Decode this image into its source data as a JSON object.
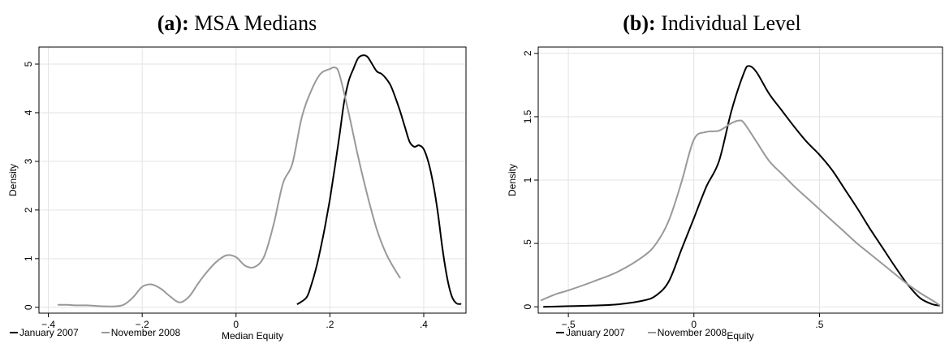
{
  "chart_data": [
    {
      "type": "line",
      "title_bold": "(a):",
      "title_rest": "MSA Medians",
      "xlabel": "Median Equity",
      "ylabel": "Density",
      "xlim": [
        -0.42,
        0.49
      ],
      "ylim": [
        -0.12,
        5.35
      ],
      "xticks": [
        -0.4,
        -0.2,
        0,
        0.2,
        0.4
      ],
      "xtick_labels": [
        "−.4",
        "−.2",
        "0",
        ".2",
        ".4"
      ],
      "yticks": [
        0,
        1,
        2,
        3,
        4,
        5
      ],
      "ytick_labels": [
        "0",
        "1",
        "2",
        "3",
        "4",
        "5"
      ],
      "grid": true,
      "legend_position": "bottom-left",
      "series": [
        {
          "name": "January 2007",
          "color": "#000000",
          "x": [
            0.13,
            0.15,
            0.16,
            0.17,
            0.18,
            0.19,
            0.2,
            0.21,
            0.22,
            0.23,
            0.24,
            0.25,
            0.26,
            0.27,
            0.28,
            0.29,
            0.3,
            0.31,
            0.32,
            0.33,
            0.34,
            0.35,
            0.36,
            0.37,
            0.38,
            0.39,
            0.4,
            0.41,
            0.42,
            0.43,
            0.44,
            0.45,
            0.46,
            0.47,
            0.48
          ],
          "y": [
            0.06,
            0.2,
            0.45,
            0.78,
            1.2,
            1.68,
            2.22,
            2.85,
            3.5,
            4.2,
            4.65,
            4.9,
            5.12,
            5.18,
            5.15,
            5.0,
            4.85,
            4.8,
            4.7,
            4.55,
            4.3,
            4.02,
            3.7,
            3.4,
            3.3,
            3.33,
            3.25,
            2.98,
            2.55,
            1.95,
            1.2,
            0.6,
            0.22,
            0.08,
            0.07
          ]
        },
        {
          "name": "November 2008",
          "color": "#999999",
          "x": [
            -0.38,
            -0.36,
            -0.34,
            -0.32,
            -0.3,
            -0.28,
            -0.26,
            -0.24,
            -0.22,
            -0.2,
            -0.18,
            -0.16,
            -0.14,
            -0.12,
            -0.1,
            -0.08,
            -0.06,
            -0.04,
            -0.02,
            0.0,
            0.02,
            0.04,
            0.06,
            0.08,
            0.1,
            0.12,
            0.14,
            0.16,
            0.18,
            0.2,
            0.21,
            0.22,
            0.24,
            0.26,
            0.28,
            0.3,
            0.32,
            0.34,
            0.35
          ],
          "y": [
            0.05,
            0.05,
            0.04,
            0.04,
            0.03,
            0.02,
            0.02,
            0.05,
            0.2,
            0.42,
            0.47,
            0.38,
            0.22,
            0.1,
            0.22,
            0.5,
            0.75,
            0.95,
            1.07,
            1.03,
            0.85,
            0.83,
            1.05,
            1.7,
            2.55,
            2.95,
            3.9,
            4.45,
            4.8,
            4.9,
            4.93,
            4.8,
            4.0,
            3.1,
            2.3,
            1.6,
            1.1,
            0.75,
            0.6
          ]
        }
      ]
    },
    {
      "type": "line",
      "title_bold": "(b):",
      "title_rest": "Individual Level",
      "xlabel": "Equity",
      "ylabel": "Density",
      "xlim": [
        -0.62,
        0.99
      ],
      "ylim": [
        -0.05,
        2.05
      ],
      "xticks": [
        -0.5,
        0,
        0.5
      ],
      "xtick_labels": [
        "−.5",
        "0",
        ".5"
      ],
      "yticks": [
        0,
        0.5,
        1,
        1.5,
        2
      ],
      "ytick_labels": [
        "0",
        ".5",
        "1",
        "1.5",
        "2"
      ],
      "grid": true,
      "legend_position": "bottom-left",
      "series": [
        {
          "name": "January 2007",
          "color": "#000000",
          "x": [
            -0.6,
            -0.5,
            -0.4,
            -0.3,
            -0.2,
            -0.15,
            -0.1,
            -0.05,
            0.0,
            0.05,
            0.1,
            0.15,
            0.2,
            0.22,
            0.25,
            0.3,
            0.35,
            0.4,
            0.45,
            0.5,
            0.55,
            0.6,
            0.65,
            0.7,
            0.75,
            0.8,
            0.85,
            0.9,
            0.95,
            0.98
          ],
          "y": [
            0.0,
            0.005,
            0.01,
            0.02,
            0.05,
            0.09,
            0.2,
            0.45,
            0.7,
            0.95,
            1.15,
            1.55,
            1.85,
            1.9,
            1.85,
            1.68,
            1.55,
            1.42,
            1.3,
            1.2,
            1.08,
            0.93,
            0.78,
            0.62,
            0.47,
            0.32,
            0.18,
            0.07,
            0.02,
            0.01
          ]
        },
        {
          "name": "November 2008",
          "color": "#999999",
          "x": [
            -0.61,
            -0.55,
            -0.5,
            -0.4,
            -0.3,
            -0.2,
            -0.15,
            -0.1,
            -0.05,
            0.0,
            0.05,
            0.1,
            0.15,
            0.18,
            0.2,
            0.25,
            0.3,
            0.35,
            0.4,
            0.45,
            0.5,
            0.55,
            0.6,
            0.65,
            0.7,
            0.75,
            0.8,
            0.85,
            0.9,
            0.95,
            0.98
          ],
          "y": [
            0.05,
            0.1,
            0.13,
            0.2,
            0.28,
            0.4,
            0.5,
            0.68,
            0.98,
            1.32,
            1.38,
            1.39,
            1.45,
            1.47,
            1.45,
            1.3,
            1.15,
            1.05,
            0.95,
            0.86,
            0.77,
            0.68,
            0.59,
            0.5,
            0.42,
            0.34,
            0.26,
            0.18,
            0.11,
            0.05,
            0.01
          ]
        }
      ]
    }
  ]
}
